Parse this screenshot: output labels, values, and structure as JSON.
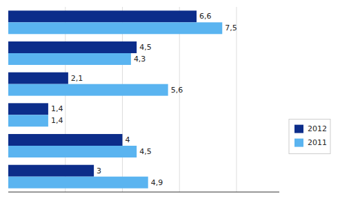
{
  "chart_data": {
    "type": "bar",
    "orientation": "horizontal",
    "categories": [
      null,
      null,
      null,
      null,
      null,
      null
    ],
    "series": [
      {
        "name": "2012",
        "color": "#0c2d8a",
        "values": [
          6.6,
          4.5,
          2.1,
          1.4,
          4.0,
          3.0
        ],
        "value_labels": [
          "6,6",
          "4,5",
          "2,1",
          "1,4",
          "4",
          "3"
        ]
      },
      {
        "name": "2011",
        "color": "#5ab4f0",
        "values": [
          7.5,
          4.3,
          5.6,
          1.4,
          4.5,
          4.9
        ],
        "value_labels": [
          "7,5",
          "4,3",
          "5,6",
          "1,4",
          "4,5",
          "4,9"
        ]
      }
    ],
    "xlim": [
      0,
      9.5
    ],
    "xticks": [
      2,
      4,
      6,
      8
    ],
    "grid": true,
    "tick_labels": false,
    "data_labels": true,
    "legend": "right"
  }
}
